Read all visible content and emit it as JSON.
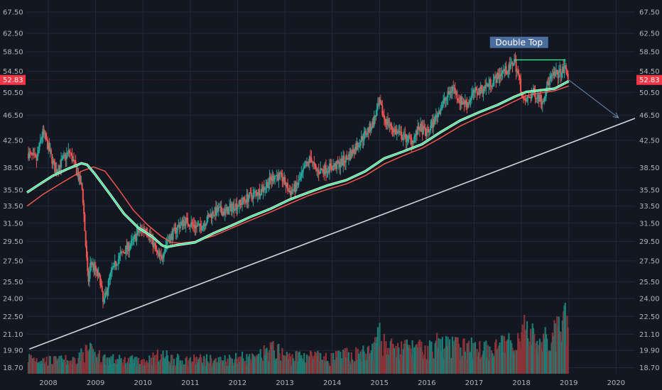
{
  "chart_data": {
    "type": "candlestick",
    "title": "",
    "xlabel": "",
    "ylabel": "",
    "scale": "log",
    "grid": true,
    "ylim": [
      18.3,
      70.5
    ],
    "x_range": [
      2007.55,
      2020.4
    ],
    "y_ticks": [
      "67.50",
      "62.50",
      "58.50",
      "54.50",
      "50.50",
      "46.50",
      "42.50",
      "38.50",
      "35.50",
      "33.50",
      "31.50",
      "29.50",
      "27.50",
      "25.50",
      "24.00",
      "22.50",
      "21.10",
      "19.90",
      "18.70"
    ],
    "x_ticks": [
      "2008",
      "2009",
      "2010",
      "2011",
      "2012",
      "2013",
      "2014",
      "2015",
      "2016",
      "2017",
      "2018",
      "2019",
      "2020"
    ],
    "last_price": "52.83",
    "colors": {
      "background": "#131722",
      "grid": "#232836",
      "axis_text": "#b2b5be",
      "candle_up": "#26a69a",
      "candle_down": "#ef5350",
      "volume_up": "#1f7a72",
      "volume_down": "#8a3338",
      "ma_fast": "#2ee88a",
      "ma_slow": "#ff5a4a",
      "trendline": "#d1d4dc",
      "projection": "#6d8fb0",
      "label_bg": "#4a6d9e",
      "price_tag": "#f23645"
    },
    "price_path": [
      [
        2007.58,
        40.5
      ],
      [
        2007.75,
        39.5
      ],
      [
        2007.88,
        43.8
      ],
      [
        2008.0,
        41.5
      ],
      [
        2008.15,
        38.0
      ],
      [
        2008.3,
        39.5
      ],
      [
        2008.45,
        40.8
      ],
      [
        2008.6,
        38.0
      ],
      [
        2008.72,
        35.5
      ],
      [
        2008.78,
        30.0
      ],
      [
        2008.84,
        25.3
      ],
      [
        2008.9,
        27.5
      ],
      [
        2009.0,
        26.5
      ],
      [
        2009.1,
        25.6
      ],
      [
        2009.16,
        23.5
      ],
      [
        2009.22,
        24.5
      ],
      [
        2009.32,
        26.2
      ],
      [
        2009.45,
        27.5
      ],
      [
        2009.6,
        28.5
      ],
      [
        2009.75,
        29.2
      ],
      [
        2009.9,
        30.5
      ],
      [
        2010.05,
        31.0
      ],
      [
        2010.18,
        29.8
      ],
      [
        2010.3,
        28.2
      ],
      [
        2010.38,
        27.6
      ],
      [
        2010.5,
        29.5
      ],
      [
        2010.62,
        30.2
      ],
      [
        2010.75,
        31.2
      ],
      [
        2010.9,
        31.8
      ],
      [
        2011.05,
        31.3
      ],
      [
        2011.2,
        31.0
      ],
      [
        2011.3,
        31.6
      ],
      [
        2011.45,
        32.6
      ],
      [
        2011.6,
        33.0
      ],
      [
        2011.75,
        32.8
      ],
      [
        2011.9,
        33.5
      ],
      [
        2012.05,
        33.8
      ],
      [
        2012.2,
        34.5
      ],
      [
        2012.35,
        35.0
      ],
      [
        2012.5,
        35.5
      ],
      [
        2012.65,
        36.5
      ],
      [
        2012.8,
        37.5
      ],
      [
        2012.95,
        37.0
      ],
      [
        2013.1,
        35.2
      ],
      [
        2013.25,
        36.0
      ],
      [
        2013.4,
        38.0
      ],
      [
        2013.55,
        40.0
      ],
      [
        2013.65,
        38.0
      ],
      [
        2013.8,
        38.2
      ],
      [
        2013.95,
        38.5
      ],
      [
        2014.1,
        38.8
      ],
      [
        2014.25,
        39.5
      ],
      [
        2014.4,
        40.5
      ],
      [
        2014.55,
        42.0
      ],
      [
        2014.7,
        43.5
      ],
      [
        2014.85,
        45.0
      ],
      [
        2015.0,
        48.5
      ],
      [
        2015.1,
        46.0
      ],
      [
        2015.25,
        44.5
      ],
      [
        2015.4,
        43.5
      ],
      [
        2015.55,
        42.8
      ],
      [
        2015.7,
        42.5
      ],
      [
        2015.85,
        44.5
      ],
      [
        2016.0,
        43.5
      ],
      [
        2016.15,
        45.5
      ],
      [
        2016.3,
        48.0
      ],
      [
        2016.45,
        50.0
      ],
      [
        2016.55,
        51.5
      ],
      [
        2016.7,
        49.0
      ],
      [
        2016.85,
        48.5
      ],
      [
        2017.0,
        50.5
      ],
      [
        2017.15,
        51.0
      ],
      [
        2017.3,
        52.0
      ],
      [
        2017.45,
        53.0
      ],
      [
        2017.6,
        54.5
      ],
      [
        2017.75,
        55.0
      ],
      [
        2017.85,
        56.8
      ],
      [
        2017.95,
        53.0
      ],
      [
        2018.05,
        48.5
      ],
      [
        2018.15,
        49.5
      ],
      [
        2018.25,
        50.5
      ],
      [
        2018.35,
        49.8
      ],
      [
        2018.45,
        49.0
      ],
      [
        2018.55,
        52.0
      ],
      [
        2018.65,
        53.5
      ],
      [
        2018.75,
        54.0
      ],
      [
        2018.85,
        54.3
      ],
      [
        2018.93,
        55.3
      ],
      [
        2018.97,
        54.0
      ],
      [
        2019.0,
        52.83
      ]
    ],
    "ma_fast": [
      [
        2007.55,
        35.2
      ],
      [
        2007.8,
        36.2
      ],
      [
        2008.1,
        37.4
      ],
      [
        2008.4,
        38.3
      ],
      [
        2008.7,
        39.1
      ],
      [
        2008.82,
        38.9
      ],
      [
        2009.0,
        37.5
      ],
      [
        2009.3,
        35.0
      ],
      [
        2009.6,
        32.6
      ],
      [
        2009.9,
        31.0
      ],
      [
        2010.2,
        30.0
      ],
      [
        2010.4,
        29.1
      ],
      [
        2010.5,
        28.9
      ],
      [
        2010.7,
        29.1
      ],
      [
        2011.1,
        29.4
      ],
      [
        2011.5,
        30.4
      ],
      [
        2011.9,
        31.3
      ],
      [
        2012.3,
        32.3
      ],
      [
        2012.7,
        33.2
      ],
      [
        2013.1,
        34.3
      ],
      [
        2013.5,
        35.2
      ],
      [
        2013.9,
        36.1
      ],
      [
        2014.3,
        36.8
      ],
      [
        2014.7,
        38.0
      ],
      [
        2015.1,
        39.8
      ],
      [
        2015.5,
        40.8
      ],
      [
        2015.9,
        41.9
      ],
      [
        2016.3,
        43.8
      ],
      [
        2016.7,
        45.6
      ],
      [
        2017.1,
        47.0
      ],
      [
        2017.5,
        48.3
      ],
      [
        2017.85,
        49.7
      ],
      [
        2018.1,
        50.6
      ],
      [
        2018.4,
        50.9
      ],
      [
        2018.7,
        51.2
      ],
      [
        2019.0,
        52.6
      ]
    ],
    "ma_slow": [
      [
        2007.55,
        33.5
      ],
      [
        2007.9,
        35.0
      ],
      [
        2008.3,
        36.5
      ],
      [
        2008.7,
        38.0
      ],
      [
        2008.95,
        38.6
      ],
      [
        2009.2,
        38.0
      ],
      [
        2009.5,
        35.5
      ],
      [
        2009.8,
        33.0
      ],
      [
        2010.1,
        31.3
      ],
      [
        2010.4,
        30.0
      ],
      [
        2010.6,
        29.4
      ],
      [
        2010.8,
        29.3
      ],
      [
        2011.1,
        29.5
      ],
      [
        2011.5,
        30.1
      ],
      [
        2011.9,
        31.0
      ],
      [
        2012.3,
        31.9
      ],
      [
        2012.7,
        32.8
      ],
      [
        2013.1,
        33.8
      ],
      [
        2013.5,
        34.8
      ],
      [
        2013.9,
        35.6
      ],
      [
        2014.3,
        36.3
      ],
      [
        2014.7,
        37.4
      ],
      [
        2015.1,
        39.0
      ],
      [
        2015.5,
        40.2
      ],
      [
        2015.9,
        41.3
      ],
      [
        2016.3,
        42.9
      ],
      [
        2016.7,
        44.7
      ],
      [
        2017.1,
        46.2
      ],
      [
        2017.5,
        47.5
      ],
      [
        2017.85,
        48.9
      ],
      [
        2018.1,
        49.9
      ],
      [
        2018.4,
        50.4
      ],
      [
        2018.7,
        50.8
      ],
      [
        2019.0,
        51.7
      ]
    ],
    "volume_peaks": [
      [
        2007.6,
        0.25
      ],
      [
        2008.0,
        0.2
      ],
      [
        2008.5,
        0.2
      ],
      [
        2008.85,
        0.35
      ],
      [
        2009.0,
        0.28
      ],
      [
        2009.3,
        0.22
      ],
      [
        2009.6,
        0.2
      ],
      [
        2010.0,
        0.2
      ],
      [
        2010.4,
        0.28
      ],
      [
        2010.8,
        0.2
      ],
      [
        2011.2,
        0.22
      ],
      [
        2011.6,
        0.2
      ],
      [
        2012.0,
        0.25
      ],
      [
        2012.4,
        0.22
      ],
      [
        2012.7,
        0.38
      ],
      [
        2013.1,
        0.25
      ],
      [
        2013.5,
        0.28
      ],
      [
        2013.9,
        0.22
      ],
      [
        2014.3,
        0.28
      ],
      [
        2014.8,
        0.32
      ],
      [
        2015.0,
        0.55
      ],
      [
        2015.3,
        0.35
      ],
      [
        2015.6,
        0.4
      ],
      [
        2016.0,
        0.35
      ],
      [
        2016.2,
        0.45
      ],
      [
        2016.5,
        0.42
      ],
      [
        2016.9,
        0.4
      ],
      [
        2017.4,
        0.4
      ],
      [
        2017.8,
        0.45
      ],
      [
        2018.05,
        0.7
      ],
      [
        2018.3,
        0.5
      ],
      [
        2018.6,
        0.5
      ],
      [
        2018.9,
        0.75
      ],
      [
        2019.0,
        0.8
      ]
    ],
    "trendline": {
      "from": [
        2007.6,
        20.0
      ],
      "to": [
        2020.4,
        46.0
      ]
    },
    "projection": {
      "from": [
        2019.0,
        52.83
      ],
      "to": [
        2020.05,
        46.1
      ]
    },
    "annotations": [
      {
        "text": "Double Top",
        "x": 2017.95,
        "y": 60.5,
        "line_from": [
          2017.85,
          56.8
        ],
        "line_to": [
          2018.93,
          56.8
        ]
      }
    ]
  }
}
